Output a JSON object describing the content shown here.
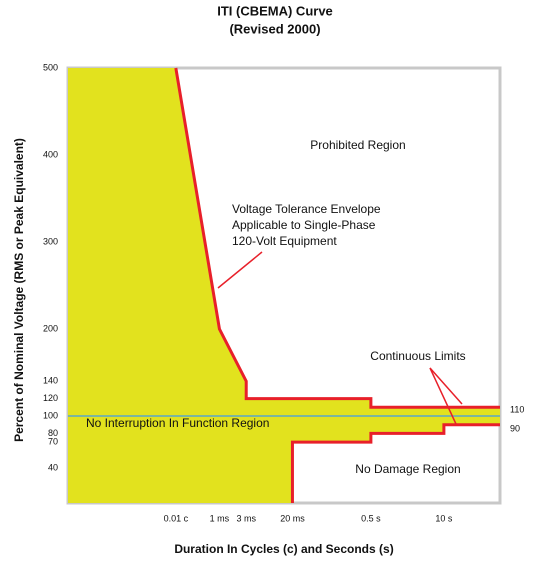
{
  "chart_data": {
    "type": "line",
    "title": [
      "ITI (CBEMA) Curve",
      "(Revised 2000)"
    ],
    "x_label": "Duration In Cycles (c) and Seconds (s)",
    "y_label": "Percent of Nominal Voltage (RMS or Peak Equivalent)",
    "xscale": "log",
    "xlim": [
      2e-06,
      100
    ],
    "xticks": [
      {
        "value": 0.000167,
        "label": "0.01 c"
      },
      {
        "value": 0.001,
        "label": "1 ms"
      },
      {
        "value": 0.003,
        "label": "3 ms"
      },
      {
        "value": 0.02,
        "label": "20 ms"
      },
      {
        "value": 0.5,
        "label": "0.5 s"
      },
      {
        "value": 10,
        "label": "10 s"
      }
    ],
    "ylim": [
      0,
      500
    ],
    "yticks": [
      40,
      70,
      80,
      100,
      120,
      140,
      200,
      300,
      400,
      500
    ],
    "line_color": "#e8202a",
    "fill_color": "#e2e21e",
    "nominal_line": {
      "value": 100,
      "color": "#59a8c8"
    },
    "upper_curve": {
      "x": [
        0.000167,
        0.001,
        0.003,
        0.003,
        0.5,
        0.5,
        100
      ],
      "values": [
        500,
        200,
        140,
        120,
        120,
        110,
        110
      ]
    },
    "lower_curve": {
      "x": [
        0.02,
        0.02,
        0.5,
        0.5,
        10,
        10,
        100
      ],
      "values": [
        0,
        70,
        70,
        80,
        80,
        90,
        90
      ]
    },
    "annotations": {
      "prohibited": "Prohibited Region",
      "envelope": [
        "Voltage Tolerance Envelope",
        "Applicable to Single-Phase",
        "120-Volt Equipment"
      ],
      "continuous": "Continuous Limits",
      "no_interruption": "No Interruption In Function Region",
      "no_damage": "No Damage Region",
      "upper_limit": "110",
      "lower_limit": "90"
    }
  }
}
